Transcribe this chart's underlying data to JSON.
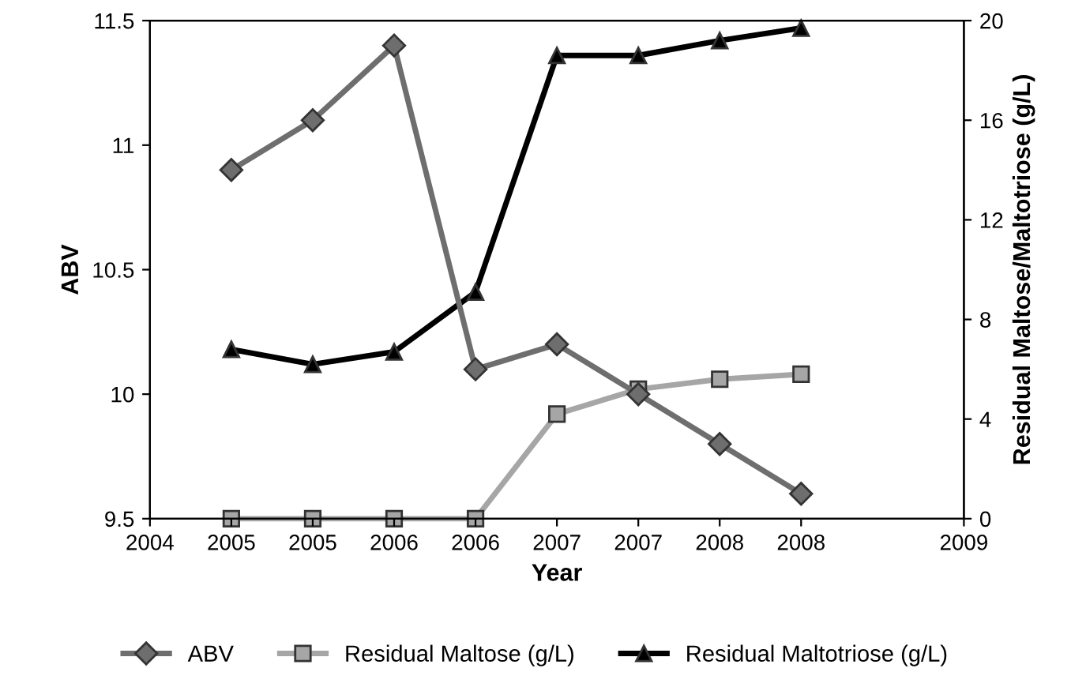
{
  "chart_data": {
    "type": "line",
    "xlabel": "Year",
    "ylabel": "ABV",
    "y2label": "Residual Maltose/Maltotriose (g/L)",
    "x": [
      2004.5,
      2005,
      2005.5,
      2006,
      2006.5,
      2007,
      2007.5,
      2008
    ],
    "series": [
      {
        "name": "ABV",
        "color": "#6e6e6e",
        "marker": "diamond",
        "values": [
          10.9,
          11.1,
          11.4,
          10.1,
          10.2,
          10.0,
          9.8,
          9.6
        ]
      },
      {
        "name": "Residual Maltose (g/L)",
        "color": "#a6a6a6",
        "marker": "square",
        "axis": "y2",
        "values": [
          0,
          0,
          0,
          0,
          4.2,
          5.2,
          5.6,
          5.8
        ]
      },
      {
        "name": "Residual Maltotriose (g/L)",
        "color": "#000000",
        "marker": "triangle",
        "axis": "y2",
        "values": [
          6.8,
          6.2,
          6.7,
          9.1,
          18.6,
          18.6,
          19.2,
          19.7
        ]
      }
    ],
    "xlim": [
      2004,
      2009
    ],
    "xticks": [
      2004,
      {
        "value": 2004.5,
        "label": "2005"
      },
      2005,
      {
        "value": 2005.5,
        "label": "2006"
      },
      2006,
      {
        "value": 2006.5,
        "label": "2007"
      },
      2007,
      {
        "value": 2007.5,
        "label": "2008"
      },
      2008,
      2009
    ],
    "ylim": [
      9.5,
      11.5
    ],
    "yticks": [
      9.5,
      10,
      10.5,
      11,
      11.5
    ],
    "y2lim": [
      0,
      20
    ],
    "y2ticks": [
      0,
      4,
      8,
      12,
      16,
      20
    ],
    "grid": false,
    "legend": "bottom",
    "line_style": "solid"
  }
}
